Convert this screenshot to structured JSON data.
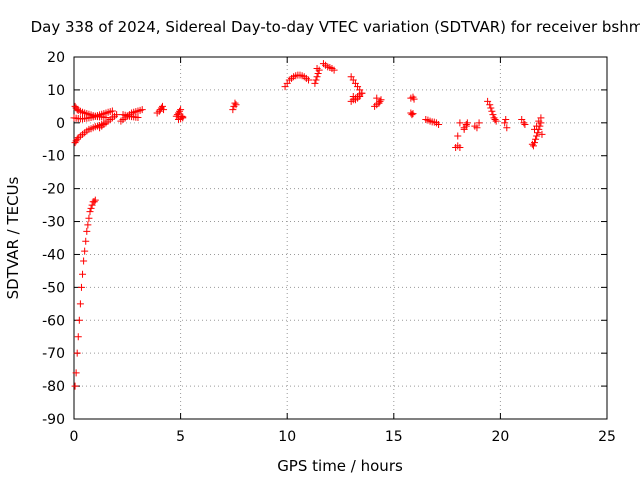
{
  "chart_data": {
    "type": "scatter",
    "title": "Day 338 of 2024, Sidereal Day-to-day VTEC variation (SDTVAR) for receiver bshm",
    "xlabel": "GPS time / hours",
    "ylabel": "SDTVAR / TECUs",
    "xlim": [
      0,
      25
    ],
    "ylim": [
      -90,
      20
    ],
    "xticks": [
      0,
      5,
      10,
      15,
      20,
      25
    ],
    "yticks": [
      20,
      10,
      0,
      -10,
      -20,
      -30,
      -40,
      -50,
      -60,
      -70,
      -80,
      -90
    ],
    "grid": true,
    "marker": "plus",
    "color": "#ff0000",
    "segments": [
      {
        "x": [
          0.05,
          0.1,
          0.15,
          0.2,
          0.25,
          0.3,
          0.35,
          0.4,
          0.45,
          0.5,
          0.55,
          0.6,
          0.65,
          0.7,
          0.75,
          0.8,
          0.85,
          0.9,
          0.95,
          1.0
        ],
        "y": [
          -80,
          -76,
          -70,
          -65,
          -60,
          -55,
          -50,
          -46,
          -42,
          -39,
          -36,
          -33,
          -31,
          -29,
          -27,
          -26,
          -25,
          -24,
          -24,
          -23.5
        ]
      },
      {
        "x": [
          0.05,
          0.1,
          0.15,
          0.2,
          0.3,
          0.4,
          0.5,
          0.6,
          0.7,
          0.8,
          0.9,
          1.0,
          1.1,
          1.2,
          1.3,
          1.4,
          1.5
        ],
        "y": [
          5,
          4.5,
          4,
          3.8,
          3.5,
          3.2,
          3,
          2.8,
          2.6,
          2.4,
          2.2,
          2.0,
          1.9,
          1.8,
          1.8,
          1.7,
          1.6
        ]
      },
      {
        "x": [
          0.05,
          0.1,
          0.15,
          0.2,
          0.3,
          0.4,
          0.5,
          0.6,
          0.7,
          0.8,
          0.9,
          1.0,
          1.1,
          1.2,
          1.3,
          1.4
        ],
        "y": [
          -6,
          -5.5,
          -5,
          -4.5,
          -4,
          -3.5,
          -3,
          -2.5,
          -2,
          -1.8,
          -1.5,
          -1.2,
          -1,
          -0.8,
          -0.5,
          -0.3
        ]
      },
      {
        "x": [
          0.0,
          0.1,
          0.2,
          0.3,
          0.4,
          0.5,
          0.6,
          0.7,
          0.8,
          0.9,
          1.0,
          1.1,
          1.2,
          1.3,
          1.4,
          1.5,
          1.6,
          1.7,
          1.8
        ],
        "y": [
          1.5,
          1.4,
          1.3,
          1.2,
          1.2,
          1.3,
          1.4,
          1.5,
          1.6,
          1.8,
          2.0,
          2.2,
          2.4,
          2.6,
          2.8,
          3.0,
          3.2,
          3.4,
          3.6
        ]
      },
      {
        "x": [
          1.2,
          1.3,
          1.4,
          1.5,
          1.6,
          1.7,
          1.8,
          1.9,
          2.0
        ],
        "y": [
          -1.5,
          -1,
          -0.5,
          0,
          0.5,
          1,
          1.5,
          2,
          2.5
        ]
      },
      {
        "x": [
          2.2,
          2.3,
          2.4,
          2.5,
          2.6,
          2.7,
          2.8,
          2.9,
          3.0,
          3.1,
          3.2
        ],
        "y": [
          0.5,
          1,
          1.5,
          2,
          2.5,
          3,
          3.2,
          3.4,
          3.6,
          3.8,
          4
        ]
      },
      {
        "x": [
          2.3,
          2.4,
          2.5,
          2.6,
          2.7,
          2.8,
          2.9,
          3.0
        ],
        "y": [
          2.5,
          2.3,
          2.1,
          2.0,
          1.9,
          1.8,
          1.7,
          1.6
        ]
      },
      {
        "x": [
          3.9,
          4.0,
          4.05,
          4.1,
          4.15,
          4.2
        ],
        "y": [
          3,
          3.5,
          4,
          4.5,
          5,
          4
        ]
      },
      {
        "x": [
          4.8,
          4.85,
          4.9,
          4.95,
          5.0,
          5.05,
          5.1,
          4.9,
          5.0,
          5.1
        ],
        "y": [
          2,
          2.5,
          3,
          3.5,
          4,
          2,
          1.5,
          1,
          1.2,
          1.8
        ]
      },
      {
        "x": [
          7.45,
          7.5,
          7.55,
          7.6
        ],
        "y": [
          4,
          5,
          6,
          5.5
        ]
      },
      {
        "x": [
          9.9,
          10.0,
          10.1,
          10.2,
          10.3,
          10.4,
          10.5,
          10.6,
          10.7,
          10.8,
          10.9,
          11.0
        ],
        "y": [
          11,
          12,
          13,
          13.5,
          14,
          14.3,
          14.5,
          14.5,
          14.3,
          14,
          13.5,
          13
        ]
      },
      {
        "x": [
          11.3,
          11.35,
          11.4,
          11.45,
          11.5,
          11.4
        ],
        "y": [
          12,
          13,
          14,
          15,
          16,
          16.5
        ]
      },
      {
        "x": [
          11.7,
          11.8,
          11.9,
          12.0,
          12.1,
          12.2
        ],
        "y": [
          18,
          17.5,
          17,
          16.8,
          16.5,
          16
        ]
      },
      {
        "x": [
          13.0,
          13.1,
          13.2,
          13.3,
          13.4,
          13.5,
          13.1,
          13.2,
          13.3,
          13.4
        ],
        "y": [
          14,
          13,
          12,
          11,
          10,
          9,
          8,
          7,
          7.5,
          8
        ]
      },
      {
        "x": [
          13.0,
          13.1,
          13.2,
          13.3,
          13.4,
          13.5
        ],
        "y": [
          6.5,
          7,
          7.5,
          8,
          8.5,
          9
        ]
      },
      {
        "x": [
          14.1,
          14.2,
          14.3,
          14.35,
          14.4,
          14.2,
          14.3
        ],
        "y": [
          5,
          5.5,
          6,
          6.5,
          7,
          7.5,
          6
        ]
      },
      {
        "x": [
          15.8,
          15.9,
          15.95
        ],
        "y": [
          7.5,
          7.8,
          7.2
        ]
      },
      {
        "x": [
          15.8,
          15.85,
          15.9
        ],
        "y": [
          3,
          2.5,
          2.8
        ]
      },
      {
        "x": [
          16.5,
          16.6,
          16.7,
          16.8,
          16.9,
          17.0,
          17.1
        ],
        "y": [
          1,
          0.8,
          0.5,
          0.3,
          0.2,
          0,
          -0.5
        ]
      },
      {
        "x": [
          17.9,
          18.0,
          18.1,
          18.0,
          18.1
        ],
        "y": [
          -7.5,
          -7,
          -7.5,
          -4,
          0
        ]
      },
      {
        "x": [
          18.3,
          18.4,
          18.45,
          18.3,
          18.4
        ],
        "y": [
          -2,
          -1,
          0,
          -1.5,
          -0.5
        ]
      },
      {
        "x": [
          18.8,
          18.9,
          19.0
        ],
        "y": [
          -1,
          -1.5,
          0
        ]
      },
      {
        "x": [
          19.4,
          19.5,
          19.55,
          19.6,
          19.65,
          19.7,
          19.75,
          19.8
        ],
        "y": [
          6.5,
          5.5,
          4.5,
          3.5,
          2.5,
          1.5,
          1,
          0.5
        ]
      },
      {
        "x": [
          20.2,
          20.3,
          20.25
        ],
        "y": [
          0,
          -1.5,
          1
        ]
      },
      {
        "x": [
          21.0,
          21.1,
          21.15
        ],
        "y": [
          1,
          0,
          -0.5
        ]
      },
      {
        "x": [
          21.5,
          21.55,
          21.6,
          21.65,
          21.7,
          21.75,
          21.8,
          21.85,
          21.9,
          21.6,
          21.7,
          21.8,
          21.9,
          21.95
        ],
        "y": [
          -6.5,
          -7,
          -6,
          -5,
          -4,
          -3,
          -2,
          -1,
          0,
          -2,
          -1,
          0.5,
          1.5,
          -3.5
        ]
      }
    ]
  }
}
